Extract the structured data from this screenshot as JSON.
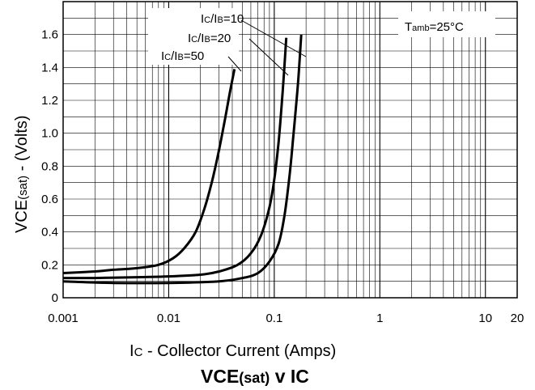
{
  "chart_data": {
    "type": "line",
    "title": "VCE(sat) v IC",
    "title_parts": {
      "main": "VCE",
      "sub": "(sat)",
      "rest": " v IC"
    },
    "xlabel": "IC - Collector Current (Amps)",
    "xlabel_parts": {
      "main": "I",
      "sub": "C",
      "rest": " - Collector Current (Amps)"
    },
    "ylabel": "VCE(sat) - (Volts)",
    "ylabel_parts": {
      "main": "VCE",
      "sub": "(sat)",
      "rest": " - (Volts)"
    },
    "x_scale": "log",
    "xlim": [
      0.001,
      20
    ],
    "ylim": [
      0,
      1.8
    ],
    "x_ticks": [
      {
        "value": 0.001,
        "label": "0.001"
      },
      {
        "value": 0.01,
        "label": "0.01"
      },
      {
        "value": 0.1,
        "label": "0.1"
      },
      {
        "value": 1,
        "label": "1"
      },
      {
        "value": 10,
        "label": "10"
      },
      {
        "value": 20,
        "label": "20"
      }
    ],
    "y_ticks": [
      {
        "value": 0,
        "label": "0"
      },
      {
        "value": 0.2,
        "label": "0.2"
      },
      {
        "value": 0.4,
        "label": "0.4"
      },
      {
        "value": 0.6,
        "label": "0.6"
      },
      {
        "value": 0.8,
        "label": "0.8"
      },
      {
        "value": 1.0,
        "label": "1.0"
      },
      {
        "value": 1.2,
        "label": "1.2"
      },
      {
        "value": 1.4,
        "label": "1.4"
      },
      {
        "value": 1.6,
        "label": "1.6"
      }
    ],
    "grid": true,
    "annotation": {
      "main": "T",
      "sub": "amb",
      "rest": "=25°C"
    },
    "series": [
      {
        "name": "IC/IB=50",
        "label_parts": {
          "a": "I",
          "sub1": "C",
          "b": "/I",
          "sub2": "B",
          "c": "=50"
        },
        "x": [
          0.001,
          0.002,
          0.003,
          0.005,
          0.008,
          0.011,
          0.014,
          0.018,
          0.022,
          0.026,
          0.03,
          0.034,
          0.038,
          0.042
        ],
        "y": [
          0.15,
          0.16,
          0.17,
          0.18,
          0.2,
          0.24,
          0.3,
          0.4,
          0.55,
          0.72,
          0.9,
          1.08,
          1.25,
          1.39
        ]
      },
      {
        "name": "IC/IB=20",
        "label_parts": {
          "a": "I",
          "sub1": "C",
          "b": "/I",
          "sub2": "B",
          "c": "=20"
        },
        "x": [
          0.001,
          0.002,
          0.005,
          0.01,
          0.02,
          0.03,
          0.045,
          0.06,
          0.075,
          0.09,
          0.1,
          0.11,
          0.12,
          0.13
        ],
        "y": [
          0.12,
          0.12,
          0.125,
          0.13,
          0.14,
          0.16,
          0.2,
          0.27,
          0.38,
          0.55,
          0.72,
          0.95,
          1.25,
          1.58
        ]
      },
      {
        "name": "IC/IB=10",
        "label_parts": {
          "a": "I",
          "sub1": "C",
          "b": "/I",
          "sub2": "B",
          "c": "=10"
        },
        "x": [
          0.001,
          0.003,
          0.01,
          0.03,
          0.05,
          0.07,
          0.09,
          0.11,
          0.125,
          0.14,
          0.15,
          0.16,
          0.17,
          0.18
        ],
        "y": [
          0.1,
          0.09,
          0.09,
          0.1,
          0.12,
          0.15,
          0.22,
          0.33,
          0.5,
          0.75,
          0.95,
          1.15,
          1.35,
          1.6
        ]
      }
    ]
  }
}
